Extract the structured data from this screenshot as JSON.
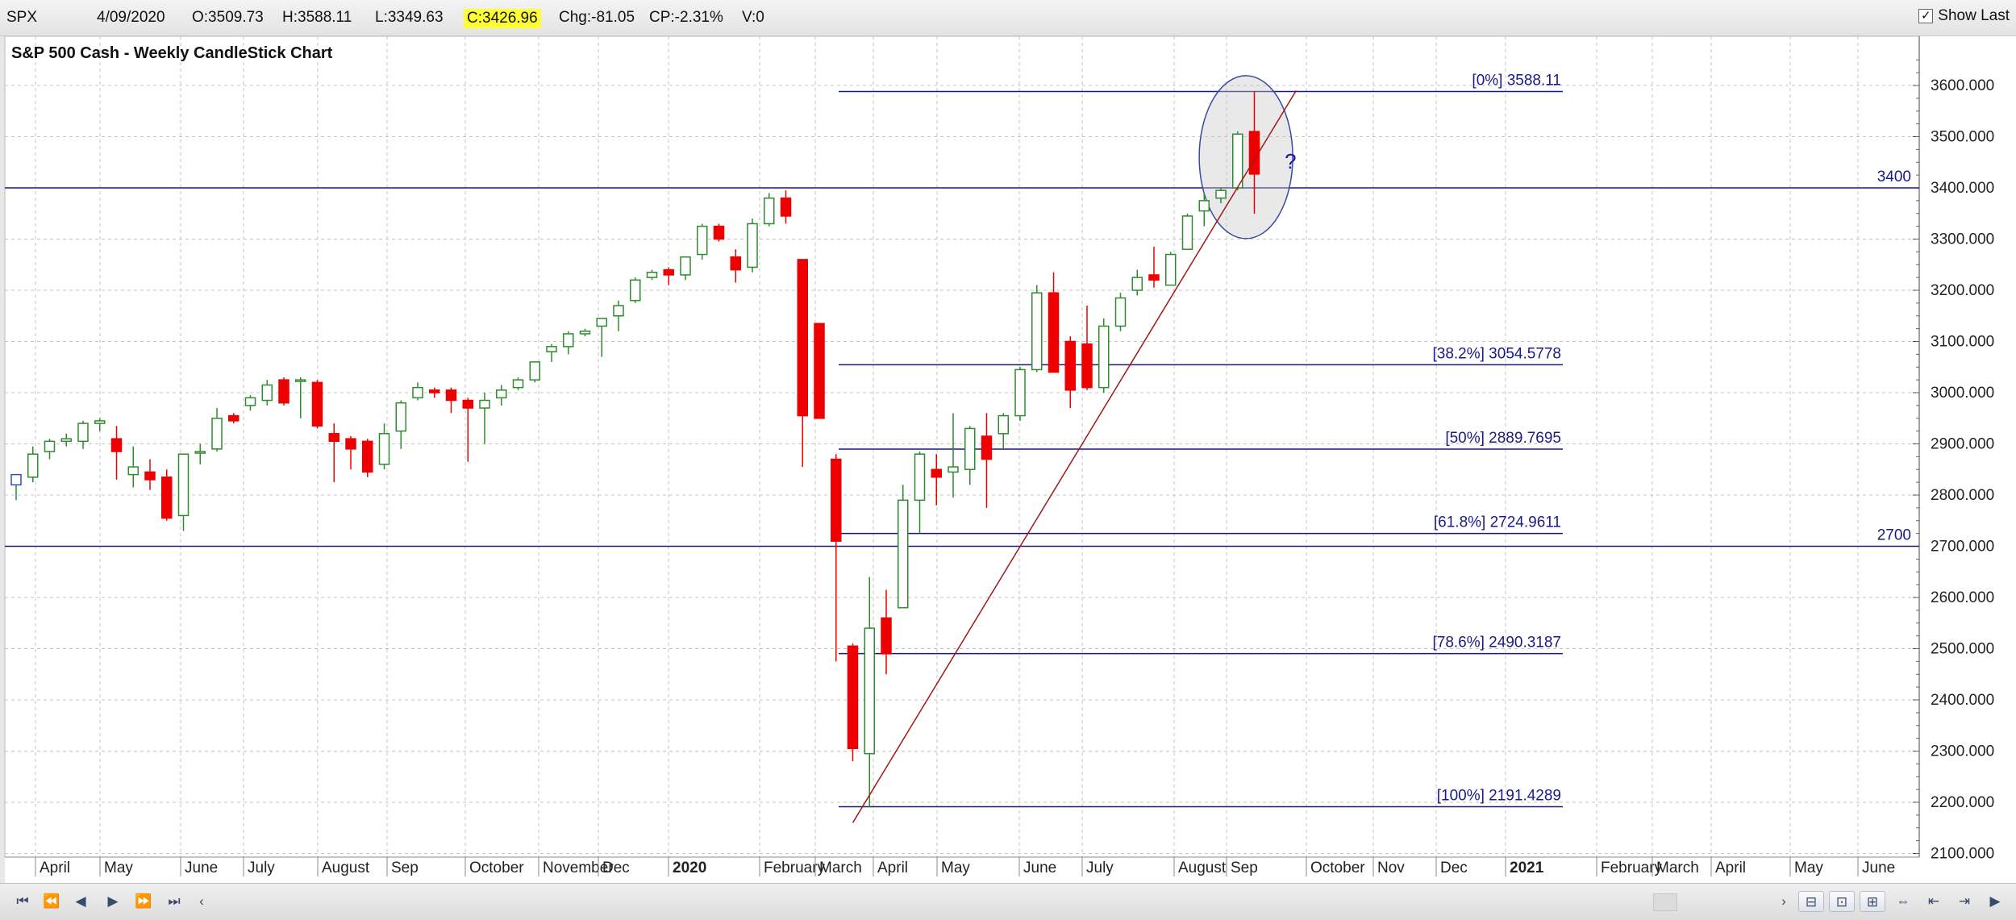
{
  "header": {
    "symbol": "SPX",
    "date": "4/09/2020",
    "open": "O:3509.73",
    "high": "H:3588.11",
    "low": "L:3349.63",
    "close": "C:3426.96",
    "change": "Chg:-81.05",
    "change_pct": "CP:-2.31%",
    "volume": "V:0",
    "show_last_label": "Show Last",
    "show_last_checked": "✓"
  },
  "chart_data": {
    "type": "candlestick",
    "title": "S&P 500 Cash - Weekly CandleStick Chart",
    "ylim": [
      2075,
      3700
    ],
    "y_ticks": [
      "2100.000",
      "2200.000",
      "2300.000",
      "2400.000",
      "2500.000",
      "2600.000",
      "2700.000",
      "2800.000",
      "2900.000",
      "3000.000",
      "3100.000",
      "3200.000",
      "3300.000",
      "3400.000",
      "3500.000",
      "3600.000"
    ],
    "x_labels": [
      "April",
      "May",
      "June",
      "July",
      "August",
      "Sep",
      "October",
      "November",
      "Dec",
      "2020",
      "February",
      "March",
      "April",
      "May",
      "June",
      "July",
      "August",
      "Sep",
      "October",
      "Nov",
      "Dec",
      "2021",
      "February",
      "March",
      "April",
      "May",
      "June"
    ],
    "grid": true,
    "up_color": "#2e8b2e",
    "down_color": "#ee0000",
    "candles": [
      {
        "o": 2820,
        "h": 2835,
        "l": 2790,
        "c": 2840
      },
      {
        "o": 2835,
        "h": 2895,
        "l": 2825,
        "c": 2880
      },
      {
        "o": 2885,
        "h": 2910,
        "l": 2870,
        "c": 2905
      },
      {
        "o": 2905,
        "h": 2920,
        "l": 2895,
        "c": 2910
      },
      {
        "o": 2905,
        "h": 2945,
        "l": 2890,
        "c": 2940
      },
      {
        "o": 2940,
        "h": 2950,
        "l": 2925,
        "c": 2945
      },
      {
        "o": 2910,
        "h": 2935,
        "l": 2830,
        "c": 2885
      },
      {
        "o": 2840,
        "h": 2895,
        "l": 2815,
        "c": 2855
      },
      {
        "o": 2845,
        "h": 2870,
        "l": 2810,
        "c": 2830
      },
      {
        "o": 2835,
        "h": 2850,
        "l": 2750,
        "c": 2755
      },
      {
        "o": 2760,
        "h": 2880,
        "l": 2730,
        "c": 2880
      },
      {
        "o": 2885,
        "h": 2900,
        "l": 2860,
        "c": 2885
      },
      {
        "o": 2890,
        "h": 2970,
        "l": 2885,
        "c": 2950
      },
      {
        "o": 2955,
        "h": 2960,
        "l": 2940,
        "c": 2945
      },
      {
        "o": 2975,
        "h": 2995,
        "l": 2965,
        "c": 2990
      },
      {
        "o": 2985,
        "h": 3025,
        "l": 2975,
        "c": 3015
      },
      {
        "o": 3025,
        "h": 3030,
        "l": 2975,
        "c": 2980
      },
      {
        "o": 3025,
        "h": 3030,
        "l": 2950,
        "c": 3025
      },
      {
        "o": 3020,
        "h": 3025,
        "l": 2930,
        "c": 2935
      },
      {
        "o": 2920,
        "h": 2940,
        "l": 2825,
        "c": 2905
      },
      {
        "o": 2910,
        "h": 2915,
        "l": 2850,
        "c": 2890
      },
      {
        "o": 2905,
        "h": 2910,
        "l": 2835,
        "c": 2845
      },
      {
        "o": 2860,
        "h": 2940,
        "l": 2850,
        "c": 2920
      },
      {
        "o": 2925,
        "h": 2985,
        "l": 2890,
        "c": 2980
      },
      {
        "o": 2990,
        "h": 3020,
        "l": 2985,
        "c": 3010
      },
      {
        "o": 3005,
        "h": 3010,
        "l": 2990,
        "c": 3000
      },
      {
        "o": 3005,
        "h": 3010,
        "l": 2960,
        "c": 2985
      },
      {
        "o": 2985,
        "h": 2990,
        "l": 2865,
        "c": 2970
      },
      {
        "o": 2970,
        "h": 3000,
        "l": 2900,
        "c": 2985
      },
      {
        "o": 2990,
        "h": 3015,
        "l": 2975,
        "c": 3005
      },
      {
        "o": 3010,
        "h": 3030,
        "l": 3005,
        "c": 3025
      },
      {
        "o": 3025,
        "h": 3060,
        "l": 3020,
        "c": 3060
      },
      {
        "o": 3080,
        "h": 3095,
        "l": 3060,
        "c": 3090
      },
      {
        "o": 3090,
        "h": 3120,
        "l": 3075,
        "c": 3115
      },
      {
        "o": 3115,
        "h": 3125,
        "l": 3110,
        "c": 3120
      },
      {
        "o": 3130,
        "h": 3140,
        "l": 3070,
        "c": 3145
      },
      {
        "o": 3150,
        "h": 3180,
        "l": 3120,
        "c": 3170
      },
      {
        "o": 3180,
        "h": 3225,
        "l": 3175,
        "c": 3220
      },
      {
        "o": 3225,
        "h": 3240,
        "l": 3220,
        "c": 3235
      },
      {
        "o": 3240,
        "h": 3245,
        "l": 3210,
        "c": 3230
      },
      {
        "o": 3230,
        "h": 3260,
        "l": 3220,
        "c": 3265
      },
      {
        "o": 3270,
        "h": 3330,
        "l": 3260,
        "c": 3325
      },
      {
        "o": 3325,
        "h": 3330,
        "l": 3295,
        "c": 3300
      },
      {
        "o": 3265,
        "h": 3280,
        "l": 3215,
        "c": 3240
      },
      {
        "o": 3245,
        "h": 3340,
        "l": 3235,
        "c": 3330
      },
      {
        "o": 3330,
        "h": 3390,
        "l": 3325,
        "c": 3380
      },
      {
        "o": 3380,
        "h": 3395,
        "l": 3330,
        "c": 3345
      },
      {
        "o": 3260,
        "h": 3260,
        "l": 2855,
        "c": 2955
      },
      {
        "o": 3135,
        "h": 3135,
        "l": 2950,
        "c": 2950
      },
      {
        "o": 2870,
        "h": 2880,
        "l": 2475,
        "c": 2710
      },
      {
        "o": 2505,
        "h": 2510,
        "l": 2280,
        "c": 2305
      },
      {
        "o": 2295,
        "h": 2640,
        "l": 2190,
        "c": 2540
      },
      {
        "o": 2560,
        "h": 2615,
        "l": 2450,
        "c": 2490
      },
      {
        "o": 2580,
        "h": 2820,
        "l": 2580,
        "c": 2790
      },
      {
        "o": 2790,
        "h": 2885,
        "l": 2725,
        "c": 2880
      },
      {
        "o": 2850,
        "h": 2880,
        "l": 2780,
        "c": 2835
      },
      {
        "o": 2845,
        "h": 2960,
        "l": 2795,
        "c": 2855
      },
      {
        "o": 2850,
        "h": 2935,
        "l": 2820,
        "c": 2930
      },
      {
        "o": 2915,
        "h": 2960,
        "l": 2775,
        "c": 2870
      },
      {
        "o": 2920,
        "h": 2960,
        "l": 2890,
        "c": 2955
      },
      {
        "o": 2955,
        "h": 3050,
        "l": 2945,
        "c": 3045
      },
      {
        "o": 3045,
        "h": 3210,
        "l": 3040,
        "c": 3195
      },
      {
        "o": 3195,
        "h": 3235,
        "l": 3045,
        "c": 3040
      },
      {
        "o": 3100,
        "h": 3110,
        "l": 2970,
        "c": 3005
      },
      {
        "o": 3095,
        "h": 3170,
        "l": 3005,
        "c": 3010
      },
      {
        "o": 3010,
        "h": 3145,
        "l": 3000,
        "c": 3130
      },
      {
        "o": 3130,
        "h": 3195,
        "l": 3120,
        "c": 3185
      },
      {
        "o": 3200,
        "h": 3240,
        "l": 3190,
        "c": 3225
      },
      {
        "o": 3230,
        "h": 3285,
        "l": 3205,
        "c": 3220
      },
      {
        "o": 3210,
        "h": 3275,
        "l": 3215,
        "c": 3270
      },
      {
        "o": 3280,
        "h": 3350,
        "l": 3280,
        "c": 3345
      },
      {
        "o": 3355,
        "h": 3390,
        "l": 3325,
        "c": 3375
      },
      {
        "o": 3380,
        "h": 3400,
        "l": 3370,
        "c": 3395
      },
      {
        "o": 3400,
        "h": 3510,
        "l": 3395,
        "c": 3505
      },
      {
        "o": 3510,
        "h": 3588.11,
        "l": 3349.63,
        "c": 3426.96
      }
    ],
    "horizontal_lines": [
      {
        "value": 3400,
        "label": "3400"
      },
      {
        "value": 2700,
        "label": "2700"
      }
    ],
    "fib_levels": [
      {
        "value": 3588.11,
        "label": "[0%] 3588.11"
      },
      {
        "value": 3054.5778,
        "label": "[38.2%] 3054.5778"
      },
      {
        "value": 2889.7695,
        "label": "[50%] 2889.7695"
      },
      {
        "value": 2724.9611,
        "label": "[61.8%] 2724.9611"
      },
      {
        "value": 2490.3187,
        "label": "[78.6%] 2490.3187"
      },
      {
        "value": 2191.4289,
        "label": "[100%] 2191.4289"
      }
    ],
    "trendline": {
      "from": {
        "candle": 50,
        "value": 2160
      },
      "to": {
        "candle": 76.5,
        "value": 3590
      }
    },
    "annotation": {
      "text": "?",
      "shape": "ellipse around last two candles"
    }
  }
}
